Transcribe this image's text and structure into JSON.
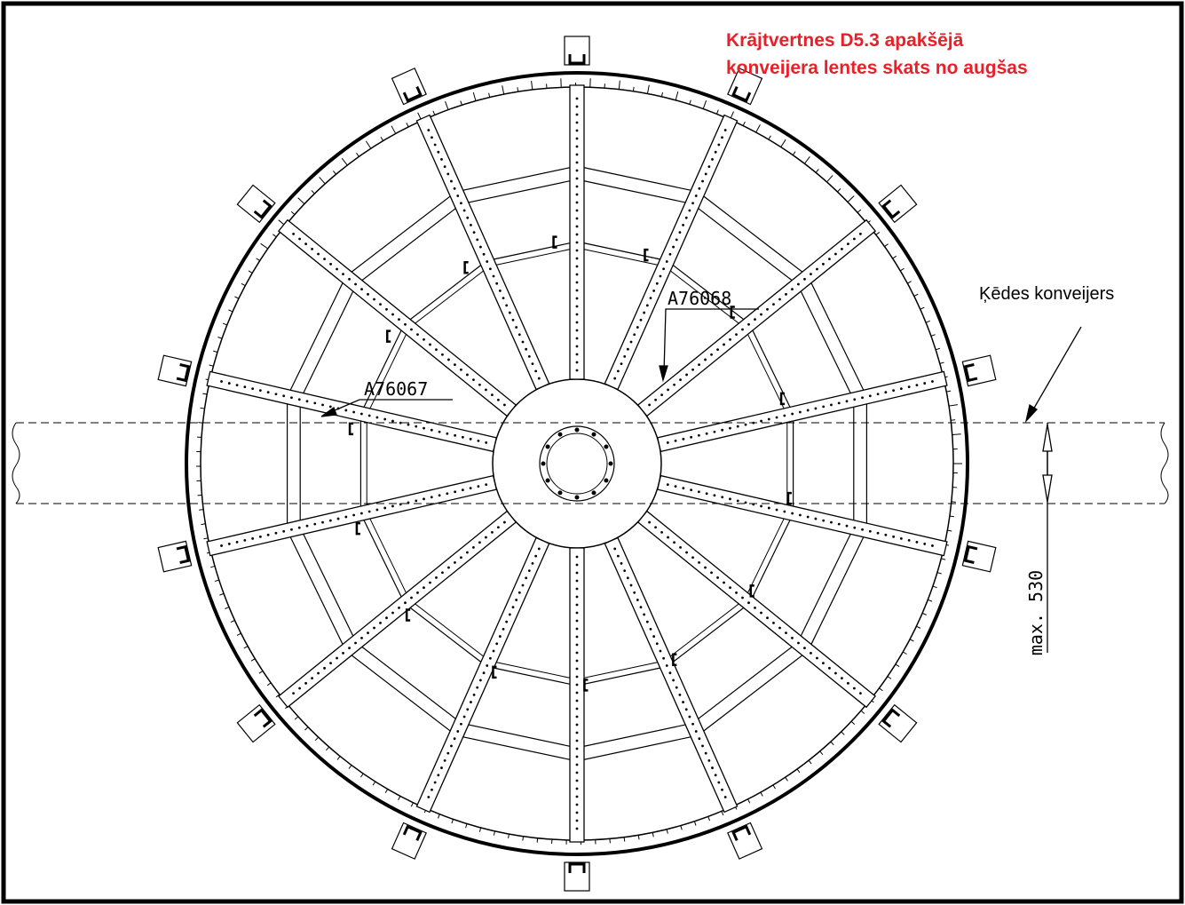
{
  "title": {
    "lines": [
      "Krājtvertnes D5.3 apakšējā",
      "konveijera lentes skats no augšas"
    ]
  },
  "callouts": {
    "conveyor": "Ķēdes konveijers",
    "part_right": "A76068",
    "part_left": "A76067",
    "dimension": "max. 530"
  }
}
